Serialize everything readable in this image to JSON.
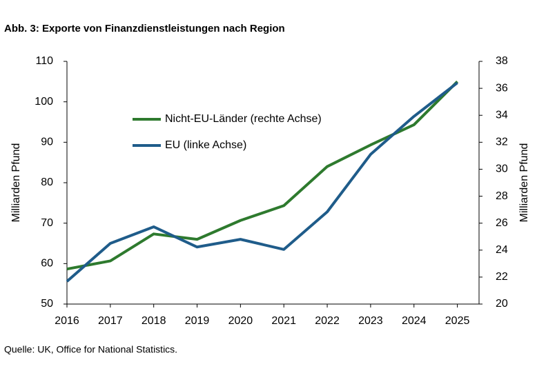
{
  "chart_data": {
    "type": "line",
    "title": "Abb. 3: Exporte von Finanzdienstleistungen nach Region",
    "source": "Quelle: UK, Office for National Statistics.",
    "y_label": "Milliarden Pfund",
    "y2_label": "Milliarden Pfund",
    "x": [
      2016,
      2017,
      2018,
      2019,
      2020,
      2021,
      2022,
      2023,
      2024,
      2025
    ],
    "xlim": [
      2016,
      2025.5
    ],
    "xticks": [
      2016,
      2017,
      2018,
      2019,
      2020,
      2021,
      2022,
      2023,
      2024,
      2025
    ],
    "ylim": [
      50,
      110
    ],
    "yticks": [
      50,
      60,
      70,
      80,
      90,
      100,
      110
    ],
    "y2lim": [
      20,
      38
    ],
    "y2ticks": [
      20,
      22,
      24,
      26,
      28,
      30,
      32,
      34,
      36,
      38
    ],
    "grid": false,
    "series": [
      {
        "name": "Nicht-EU-Länder (rechte Achse)",
        "color": "#2e7a2e",
        "axis": "y2",
        "values": [
          22.6,
          23.2,
          25.2,
          24.8,
          26.2,
          27.3,
          30.2,
          31.8,
          33.3,
          36.5
        ]
      },
      {
        "name": "EU (linke Achse)",
        "color": "#1f5c8a",
        "values": [
          55.6,
          65.0,
          69.1,
          64.1,
          66.0,
          63.5,
          72.8,
          87.0,
          96.4,
          104.7
        ]
      }
    ]
  }
}
